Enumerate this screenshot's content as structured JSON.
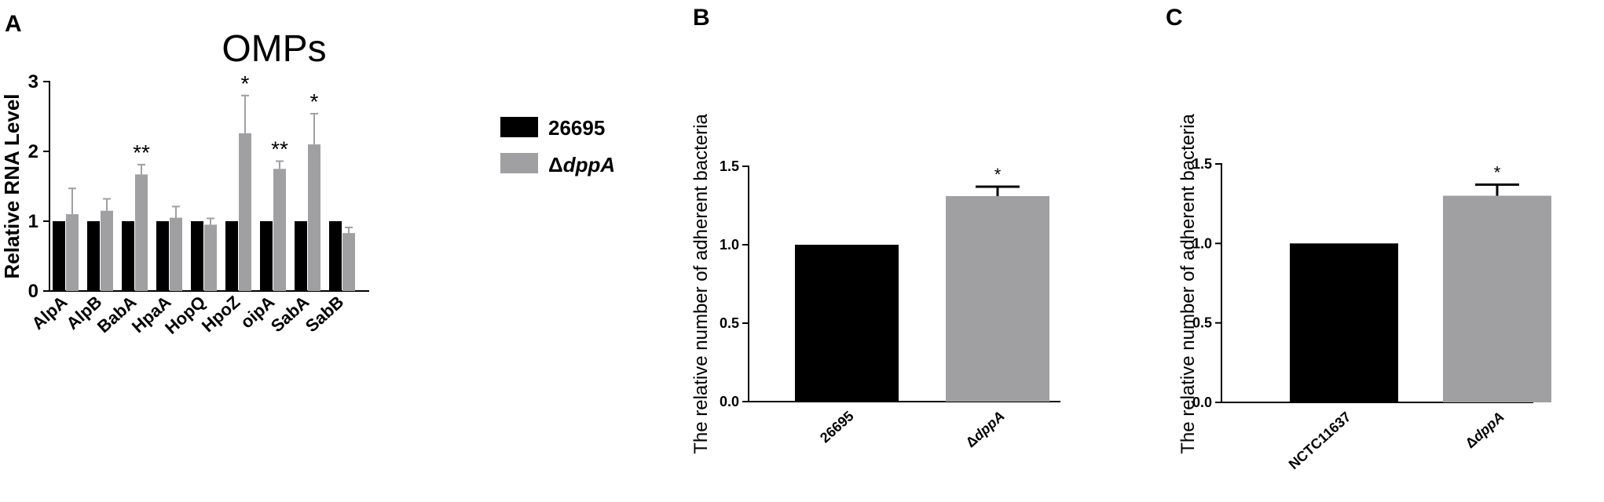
{
  "colors": {
    "black_bar": "#000000",
    "gray_bar": "#a0a0a3",
    "axis": "#000000"
  },
  "panels": {
    "a": "A",
    "b": "B",
    "c": "C"
  },
  "legend": {
    "entry1": "26695",
    "entry2_prefix": "Δ",
    "entry2_italic": "dppA"
  },
  "chart_data": [
    {
      "panel": "A",
      "type": "bar",
      "title": "OMPs",
      "ylabel": "Relative RNA Level",
      "ylim": [
        0,
        3
      ],
      "yticks": [
        "0",
        "1",
        "2",
        "3"
      ],
      "categories": [
        "AlpA",
        "AlpB",
        "BabA",
        "HpaA",
        "HopQ",
        "HpoZ",
        "oipA",
        "SabA",
        "SabB"
      ],
      "series": [
        {
          "name": "26695",
          "values": [
            1,
            1,
            1,
            1,
            1,
            1,
            1,
            1,
            1
          ],
          "errors": [
            0,
            0,
            0,
            0,
            0,
            0,
            0,
            0,
            0
          ]
        },
        {
          "name": "ΔdppA",
          "values": [
            1.1,
            1.15,
            1.67,
            1.05,
            0.95,
            2.26,
            1.75,
            2.1,
            0.83
          ],
          "errors": [
            0.37,
            0.17,
            0.14,
            0.16,
            0.09,
            0.54,
            0.11,
            0.44,
            0.08
          ]
        }
      ],
      "annotations": [
        "",
        "",
        "**",
        "",
        "",
        "*",
        "**",
        "*",
        ""
      ],
      "legend_position": "right"
    },
    {
      "panel": "B",
      "type": "bar",
      "ylabel": "The relative number of adherent bacteria",
      "ylim": [
        0,
        1.5
      ],
      "yticks": [
        "0.0",
        "0.5",
        "1.0",
        "1.5"
      ],
      "categories": [
        {
          "prefix": "",
          "italic": "",
          "text": "26695"
        },
        {
          "prefix": "Δ",
          "italic": "dppA",
          "text": ""
        }
      ],
      "values": [
        1.0,
        1.31
      ],
      "errors": [
        0,
        0.06
      ],
      "annotations": [
        "",
        "*"
      ]
    },
    {
      "panel": "C",
      "type": "bar",
      "ylabel": "The relative number of adherent bacteria",
      "ylim": [
        0,
        1.5
      ],
      "yticks": [
        "0.0",
        "0.5",
        "1.0",
        "1.5"
      ],
      "categories": [
        {
          "prefix": "",
          "italic": "",
          "text": "NCTC11637"
        },
        {
          "prefix": "Δ",
          "italic": "dppA",
          "text": ""
        }
      ],
      "values": [
        1.0,
        1.3
      ],
      "errors": [
        0,
        0.07
      ],
      "annotations": [
        "",
        "*"
      ]
    }
  ]
}
